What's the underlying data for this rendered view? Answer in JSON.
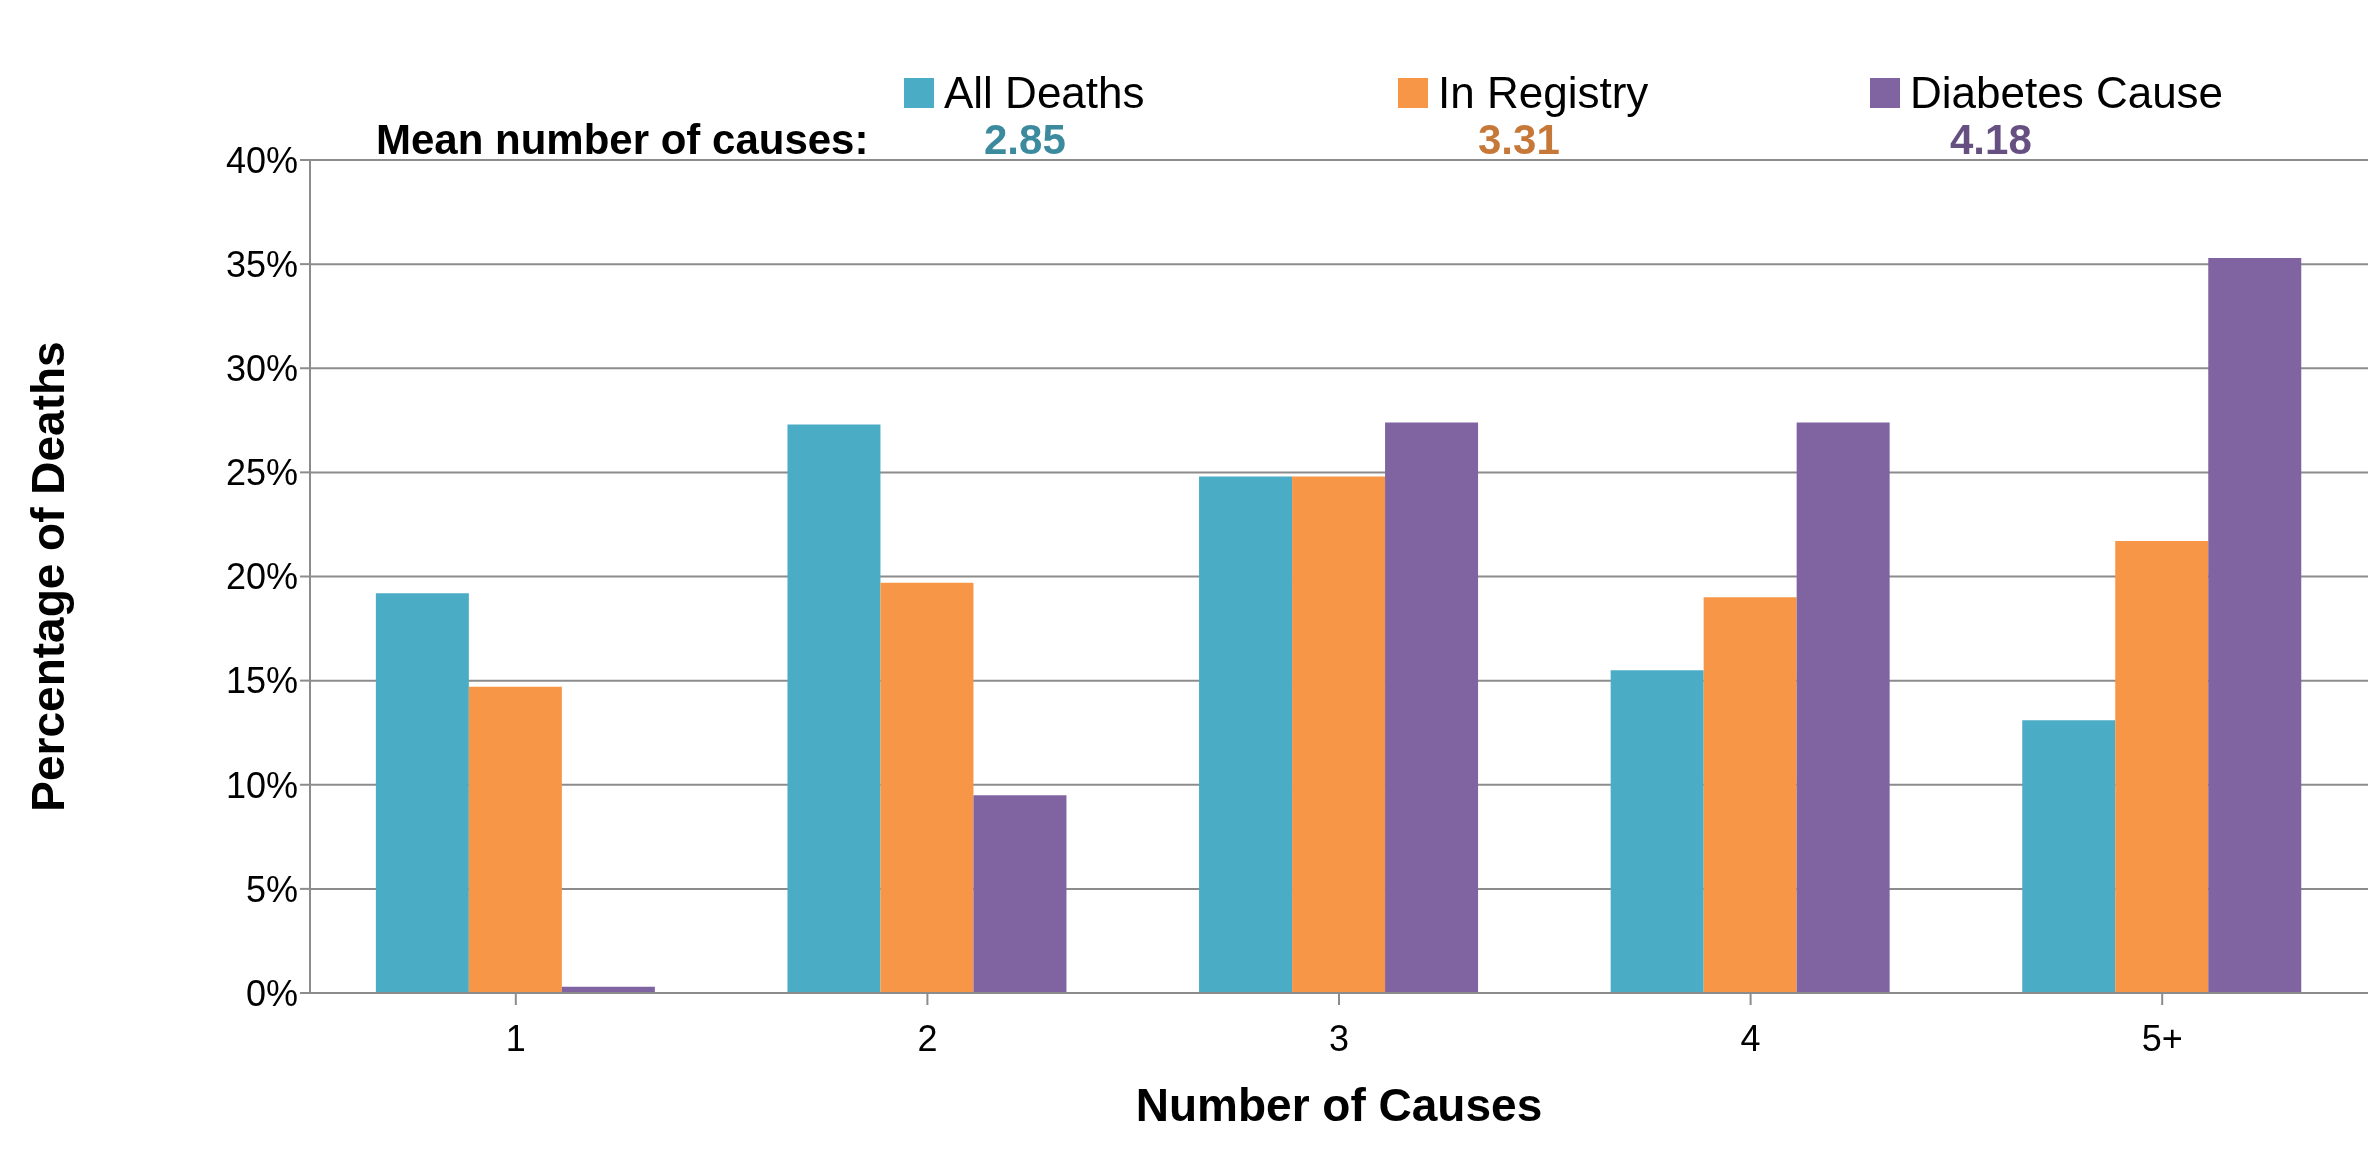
{
  "chart_data": {
    "type": "bar",
    "xlabel": "Number of Causes",
    "ylabel": "Percentage of Deaths",
    "categories": [
      "1",
      "2",
      "3",
      "4",
      "5+"
    ],
    "series": [
      {
        "name": "All Deaths",
        "color": "#4bacc6",
        "values": [
          19.2,
          27.3,
          24.8,
          15.5,
          13.1
        ]
      },
      {
        "name": "In Registry",
        "color": "#f79646",
        "values": [
          14.7,
          19.7,
          24.8,
          19.0,
          21.7
        ]
      },
      {
        "name": "Diabetes Cause",
        "color": "#8064a2",
        "values": [
          0.3,
          9.5,
          27.4,
          27.4,
          35.3
        ]
      }
    ],
    "ylim": [
      0,
      40
    ],
    "yticks": [
      {
        "value": 0,
        "label": "0%"
      },
      {
        "value": 5,
        "label": "5%"
      },
      {
        "value": 10,
        "label": "10%"
      },
      {
        "value": 15,
        "label": "15%"
      },
      {
        "value": 20,
        "label": "20%"
      },
      {
        "value": 25,
        "label": "25%"
      },
      {
        "value": 30,
        "label": "30%"
      },
      {
        "value": 35,
        "label": "35%"
      },
      {
        "value": 40,
        "label": "40%"
      }
    ],
    "grid": "y",
    "legend": "top",
    "annotations": [
      "Mean number of causes:",
      "2.85",
      "3.31",
      "4.18"
    ]
  }
}
